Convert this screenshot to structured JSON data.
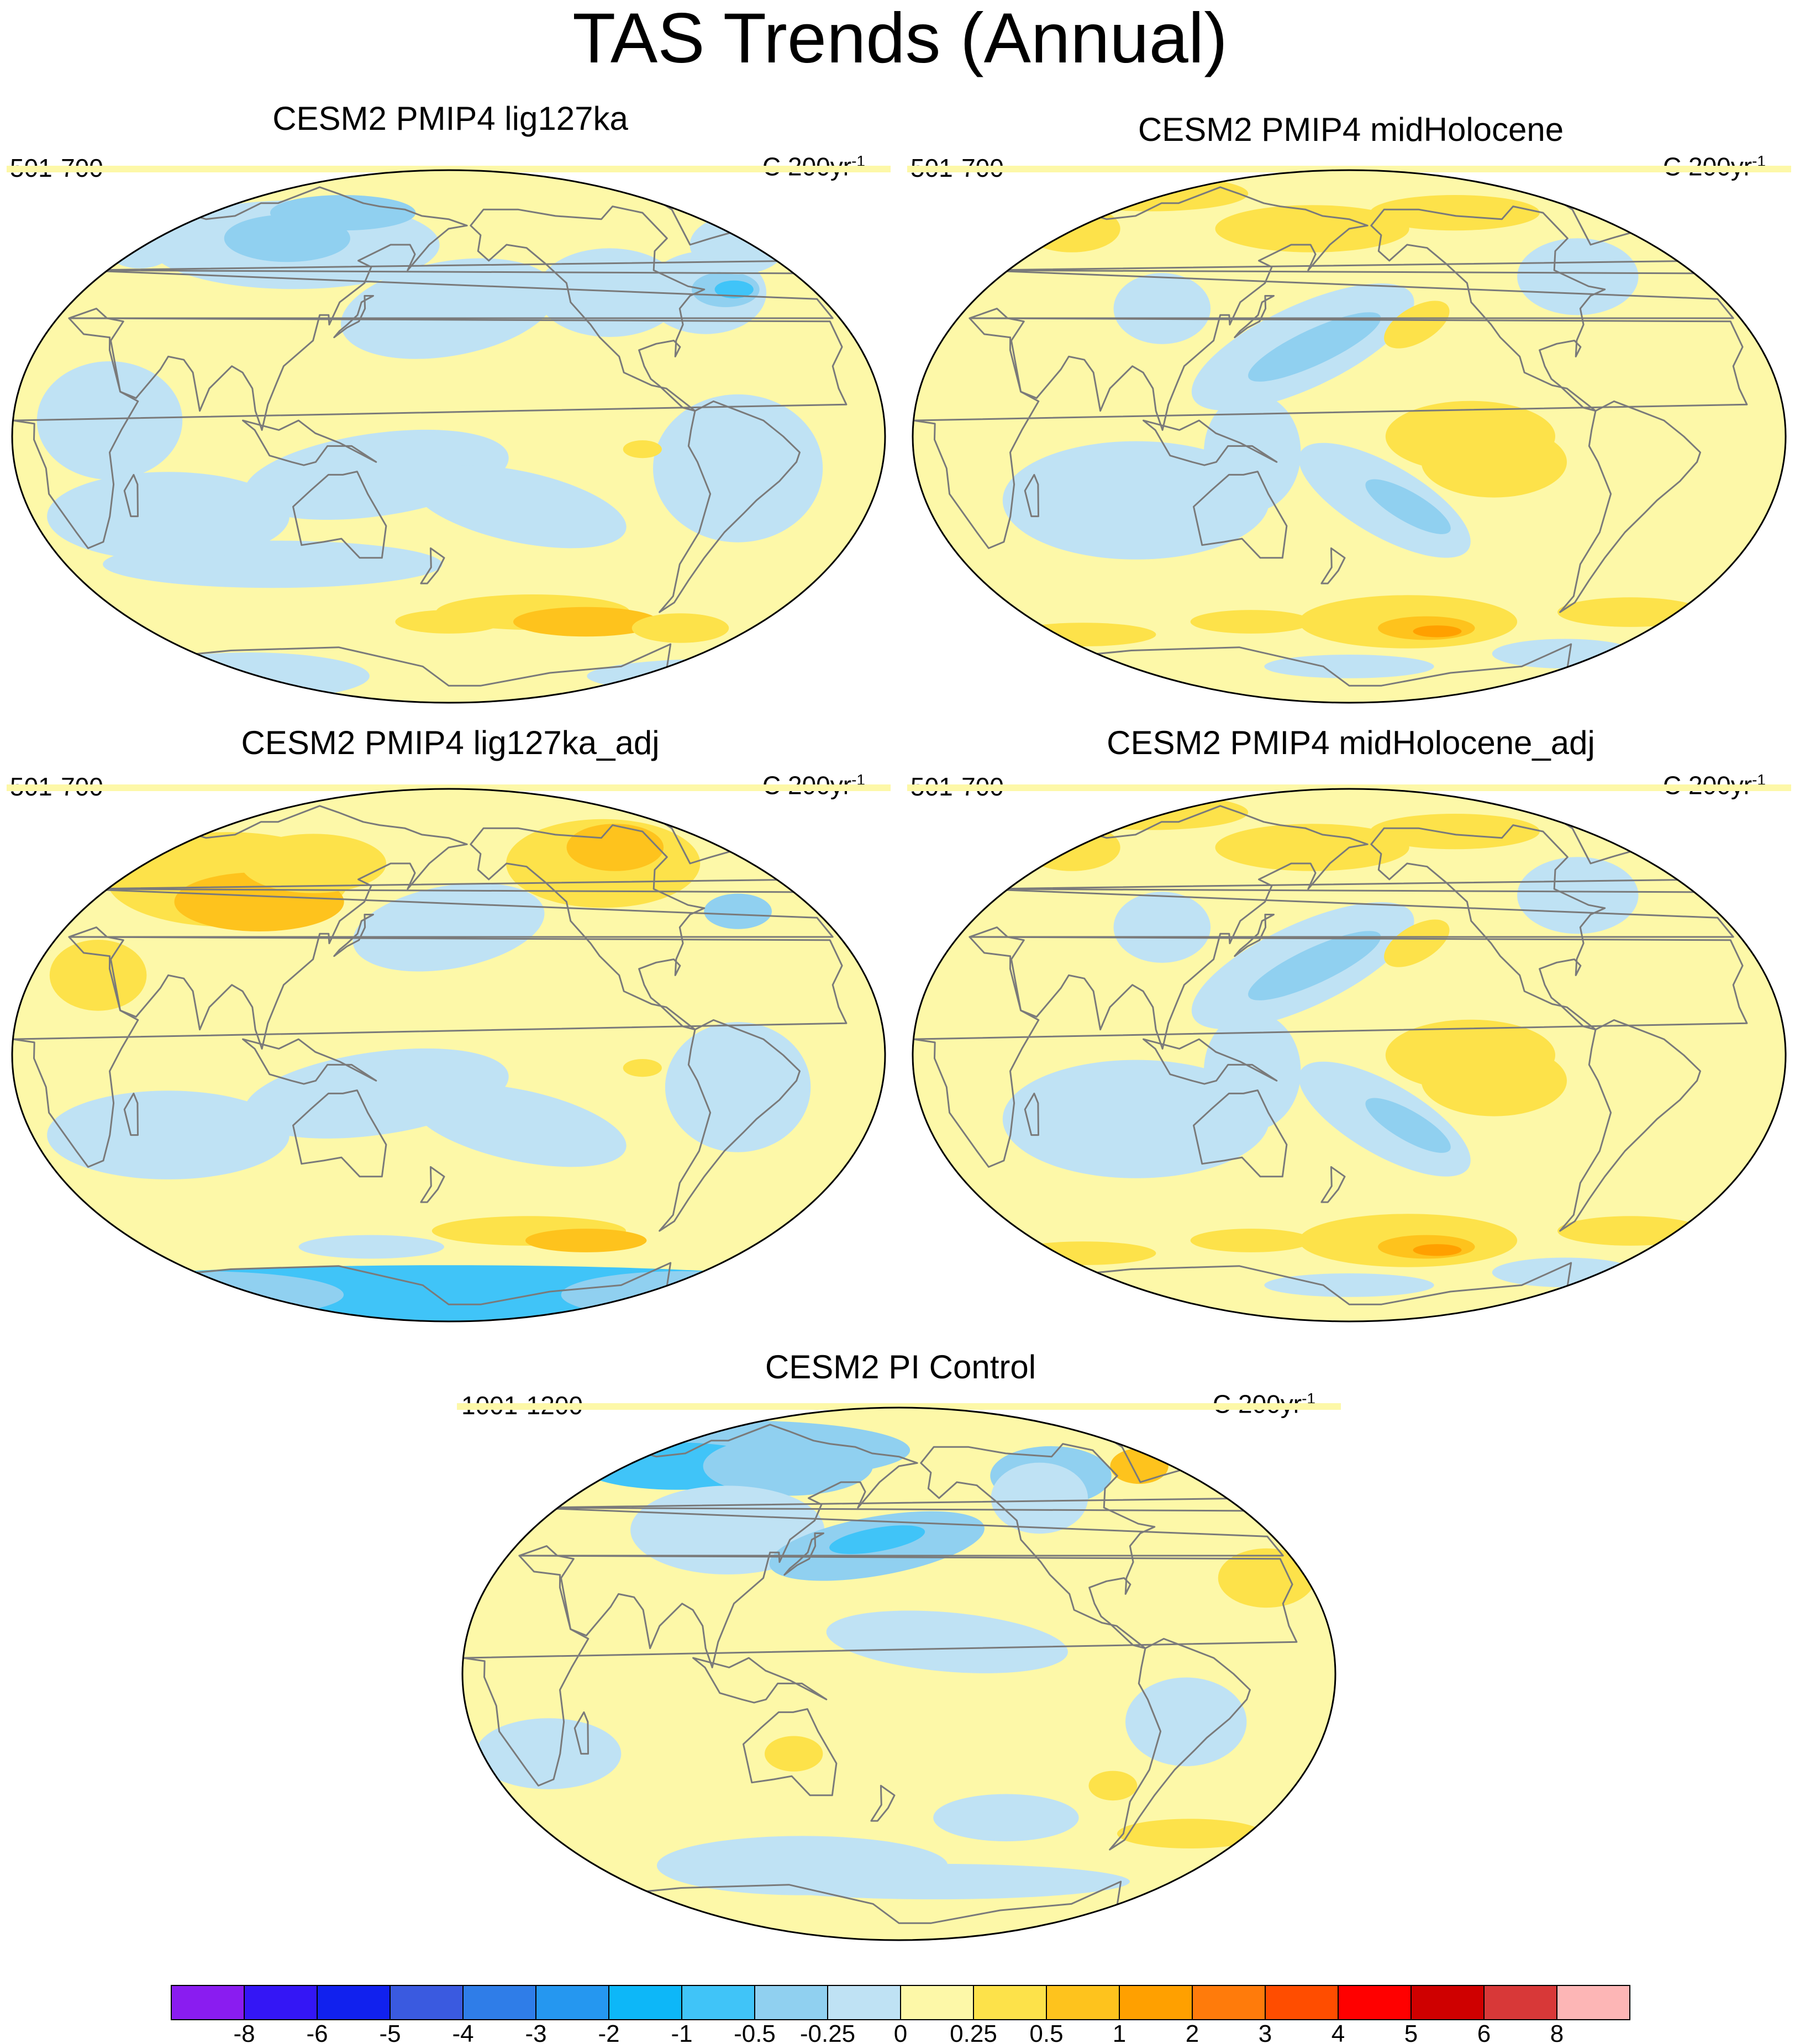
{
  "figure": {
    "title": "TAS Trends (Annual)"
  },
  "panels": [
    {
      "title": "CESM2 PMIP4 lig127ka",
      "period": "501-700",
      "unit_base": "C 200yr",
      "unit_exp": "-1",
      "field": "lig"
    },
    {
      "title": "CESM2 PMIP4 midHolocene",
      "period": "501-700",
      "unit_base": "C 200yr",
      "unit_exp": "-1",
      "field": "mh"
    },
    {
      "title": "CESM2 PMIP4 lig127ka_adj",
      "period": "501-700",
      "unit_base": "C 200yr",
      "unit_exp": "-1",
      "field": "ligadj"
    },
    {
      "title": "CESM2 PMIP4 midHolocene_adj",
      "period": "501-700",
      "unit_base": "C 200yr",
      "unit_exp": "-1",
      "field": "mh"
    },
    {
      "title": "CESM2 PI Control",
      "period": "1001-1200",
      "unit_base": "C 200yr",
      "unit_exp": "-1",
      "field": "pi"
    }
  ],
  "map_style": {
    "projection": "Winkel-style elliptical global projection, Pacific-centered",
    "coastline_color": "#7a7a7a",
    "border_color": "#000000"
  },
  "colorbar": {
    "levels": [
      "-8",
      "-6",
      "-5",
      "-4",
      "-3",
      "-2",
      "-1",
      "-0.5",
      "-0.25",
      "0",
      "0.25",
      "0.5",
      "1",
      "2",
      "3",
      "4",
      "5",
      "6",
      "8"
    ],
    "colors": [
      "#8a1cf0",
      "#3416f5",
      "#1121ee",
      "#3a5ae0",
      "#2f7de8",
      "#2597f0",
      "#0db7f8",
      "#40c4f8",
      "#90d0f0",
      "#bfe2f4",
      "#fdf8a8",
      "#fde24a",
      "#fec31d",
      "#ffa000",
      "#ff7b0b",
      "#ff4d00",
      "#ff0000",
      "#cf0000",
      "#d83838",
      "#fdb6b6"
    ]
  }
}
